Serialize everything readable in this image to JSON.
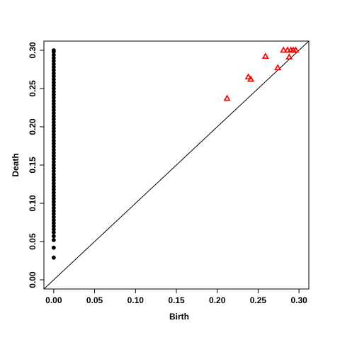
{
  "chart_data": {
    "type": "scatter",
    "title": "",
    "xlabel": "Birth",
    "ylabel": "Death",
    "xlim": [
      0.0,
      0.3
    ],
    "ylim": [
      0.0,
      0.3
    ],
    "xticks": [
      "0.00",
      "0.05",
      "0.10",
      "0.15",
      "0.20",
      "0.25",
      "0.30"
    ],
    "yticks": [
      "0.00",
      "0.05",
      "0.10",
      "0.15",
      "0.20",
      "0.25",
      "0.30"
    ],
    "grid": false,
    "legend": "none",
    "diagonal_line": true,
    "series": [
      {
        "marker": "filled-circle",
        "color": "#000000",
        "points": [
          [
            0.0,
            0.029
          ],
          [
            0.0,
            0.042
          ],
          [
            0.0,
            0.052
          ],
          [
            0.0,
            0.057
          ],
          [
            0.0,
            0.062
          ],
          [
            0.0,
            0.066
          ],
          [
            0.0,
            0.07
          ],
          [
            0.0,
            0.074
          ],
          [
            0.0,
            0.078
          ],
          [
            0.0,
            0.082
          ],
          [
            0.0,
            0.086
          ],
          [
            0.0,
            0.09
          ],
          [
            0.0,
            0.094
          ],
          [
            0.0,
            0.098
          ],
          [
            0.0,
            0.102
          ],
          [
            0.0,
            0.106
          ],
          [
            0.0,
            0.11
          ],
          [
            0.0,
            0.114
          ],
          [
            0.0,
            0.118
          ],
          [
            0.0,
            0.122
          ],
          [
            0.0,
            0.126
          ],
          [
            0.0,
            0.13
          ],
          [
            0.0,
            0.134
          ],
          [
            0.0,
            0.138
          ],
          [
            0.0,
            0.142
          ],
          [
            0.0,
            0.146
          ],
          [
            0.0,
            0.15
          ],
          [
            0.0,
            0.154
          ],
          [
            0.0,
            0.158
          ],
          [
            0.0,
            0.162
          ],
          [
            0.0,
            0.166
          ],
          [
            0.0,
            0.17
          ],
          [
            0.0,
            0.174
          ],
          [
            0.0,
            0.178
          ],
          [
            0.0,
            0.182
          ],
          [
            0.0,
            0.186
          ],
          [
            0.0,
            0.19
          ],
          [
            0.0,
            0.194
          ],
          [
            0.0,
            0.198
          ],
          [
            0.0,
            0.202
          ],
          [
            0.0,
            0.206
          ],
          [
            0.0,
            0.21
          ],
          [
            0.0,
            0.214
          ],
          [
            0.0,
            0.218
          ],
          [
            0.0,
            0.222
          ],
          [
            0.0,
            0.226
          ],
          [
            0.0,
            0.23
          ],
          [
            0.0,
            0.234
          ],
          [
            0.0,
            0.238
          ],
          [
            0.0,
            0.242
          ],
          [
            0.0,
            0.246
          ],
          [
            0.0,
            0.25
          ],
          [
            0.0,
            0.254
          ],
          [
            0.0,
            0.258
          ],
          [
            0.0,
            0.262
          ],
          [
            0.0,
            0.266
          ],
          [
            0.0,
            0.27
          ],
          [
            0.0,
            0.274
          ],
          [
            0.0,
            0.278
          ],
          [
            0.0,
            0.282
          ],
          [
            0.0,
            0.286
          ],
          [
            0.0,
            0.29
          ],
          [
            0.0,
            0.294
          ],
          [
            0.0,
            0.298
          ],
          [
            0.0,
            0.3
          ]
        ]
      },
      {
        "marker": "open-triangle",
        "color": "#ff0000",
        "points": [
          [
            0.212,
            0.237
          ],
          [
            0.238,
            0.265
          ],
          [
            0.241,
            0.262
          ],
          [
            0.259,
            0.292
          ],
          [
            0.274,
            0.277
          ],
          [
            0.281,
            0.3
          ],
          [
            0.286,
            0.3
          ],
          [
            0.288,
            0.291
          ],
          [
            0.29,
            0.3
          ],
          [
            0.293,
            0.3
          ],
          [
            0.296,
            0.3
          ]
        ]
      }
    ]
  }
}
